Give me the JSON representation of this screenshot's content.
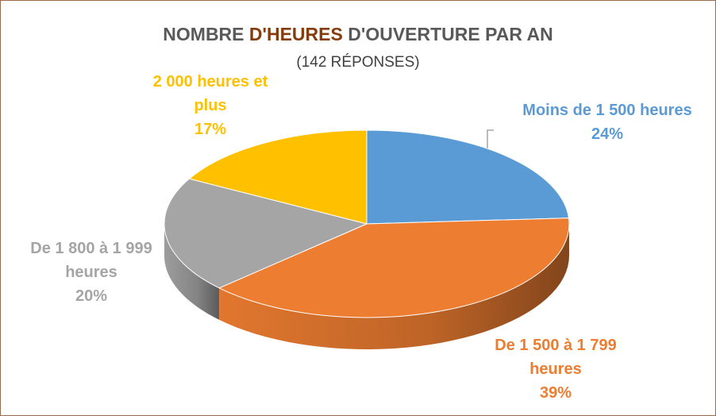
{
  "chart_data": {
    "type": "pie",
    "title": [
      "NOMBRE",
      "D'HEURES",
      "D'OUVERTURE PAR AN"
    ],
    "subtitle": "(142 RÉPONSES)",
    "categories": [
      "Moins de 1 500 heures",
      "De 1 500 à 1 799 heures",
      "De 1 800 à 1 999 heures",
      "2 000 heures et plus"
    ],
    "values": [
      24,
      39,
      20,
      17
    ],
    "value_labels": [
      "24%",
      "39%",
      "20%",
      "17%"
    ],
    "colors": [
      "#5b9bd5",
      "#ed7d31",
      "#a5a5a5",
      "#ffc000"
    ]
  }
}
